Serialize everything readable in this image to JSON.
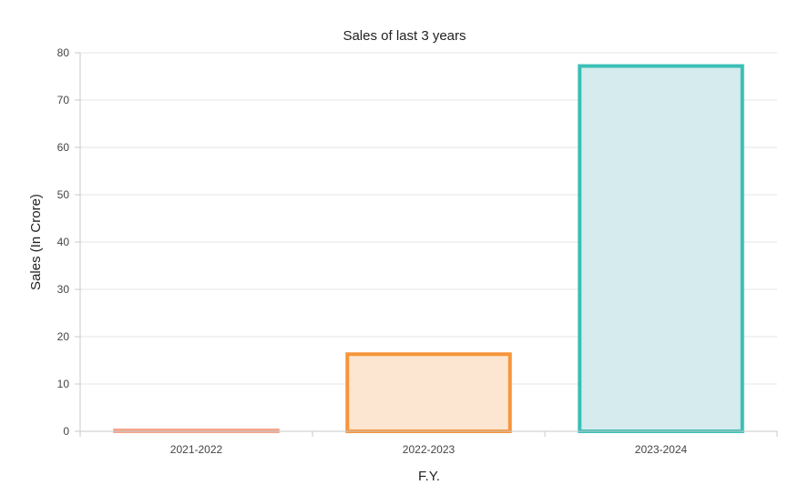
{
  "chart_data": {
    "type": "bar",
    "title": "Sales of last 3 years",
    "xlabel": "F.Y.",
    "ylabel": "Sales (In Crore)",
    "categories": [
      "2021-2022",
      "2022-2023",
      "2023-2024"
    ],
    "values": [
      0.2,
      16.3,
      77.2
    ],
    "ylim": [
      0,
      80
    ],
    "yticks": [
      0,
      10,
      20,
      30,
      40,
      50,
      60,
      70,
      80
    ],
    "grid": true,
    "legend": "none",
    "colors": {
      "border": [
        "#f4a58a",
        "#f7953a",
        "#3cbfb6"
      ],
      "fill": [
        "#fbe2d8",
        "#fde6d1",
        "#d5ebee"
      ]
    }
  }
}
